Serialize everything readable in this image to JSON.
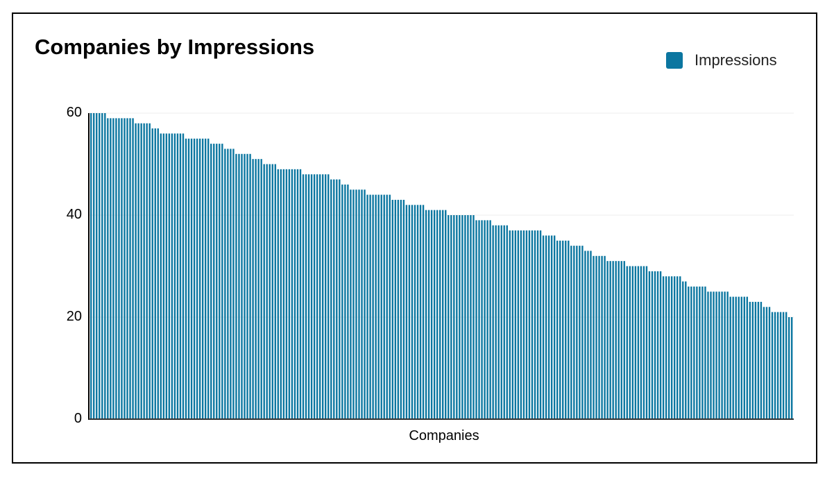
{
  "title": "Companies by Impressions",
  "legend": {
    "label": "Impressions",
    "color": "#0b76a0"
  },
  "colors": {
    "bar": "#0b76a0",
    "axis": "#000000",
    "baseline": "#333333",
    "grid": "#eeeeee"
  },
  "chart_data": {
    "type": "bar",
    "title": "Companies by Impressions",
    "xlabel": "Companies",
    "ylabel": "",
    "ylim": [
      0,
      60
    ],
    "yticks": [
      0,
      20,
      40,
      60
    ],
    "grid": true,
    "legend_position": "top-right",
    "legend": [
      "Impressions"
    ],
    "series": [
      {
        "name": "Impressions",
        "runs": [
          [
            60,
            6
          ],
          [
            59,
            10
          ],
          [
            58,
            6
          ],
          [
            57,
            3
          ],
          [
            56,
            9
          ],
          [
            55,
            9
          ],
          [
            54,
            5
          ],
          [
            53,
            4
          ],
          [
            52,
            6
          ],
          [
            51,
            4
          ],
          [
            50,
            5
          ],
          [
            49,
            9
          ],
          [
            48,
            10
          ],
          [
            47,
            4
          ],
          [
            46,
            3
          ],
          [
            45,
            6
          ],
          [
            44,
            9
          ],
          [
            43,
            5
          ],
          [
            42,
            7
          ],
          [
            41,
            8
          ],
          [
            40,
            10
          ],
          [
            39,
            6
          ],
          [
            38,
            6
          ],
          [
            37,
            12
          ],
          [
            36,
            5
          ],
          [
            35,
            5
          ],
          [
            34,
            5
          ],
          [
            33,
            3
          ],
          [
            32,
            5
          ],
          [
            31,
            7
          ],
          [
            30,
            8
          ],
          [
            29,
            5
          ],
          [
            28,
            7
          ],
          [
            27,
            2
          ],
          [
            26,
            7
          ],
          [
            25,
            8
          ],
          [
            24,
            7
          ],
          [
            23,
            5
          ],
          [
            22,
            3
          ],
          [
            21,
            6
          ],
          [
            20,
            2
          ]
        ]
      }
    ],
    "note": "values listed as [impressions, count of consecutive companies]; ~252 companies sorted descending, x tick labels not shown"
  },
  "axis": {
    "y_ticks": [
      "60",
      "40",
      "20",
      "0"
    ]
  }
}
